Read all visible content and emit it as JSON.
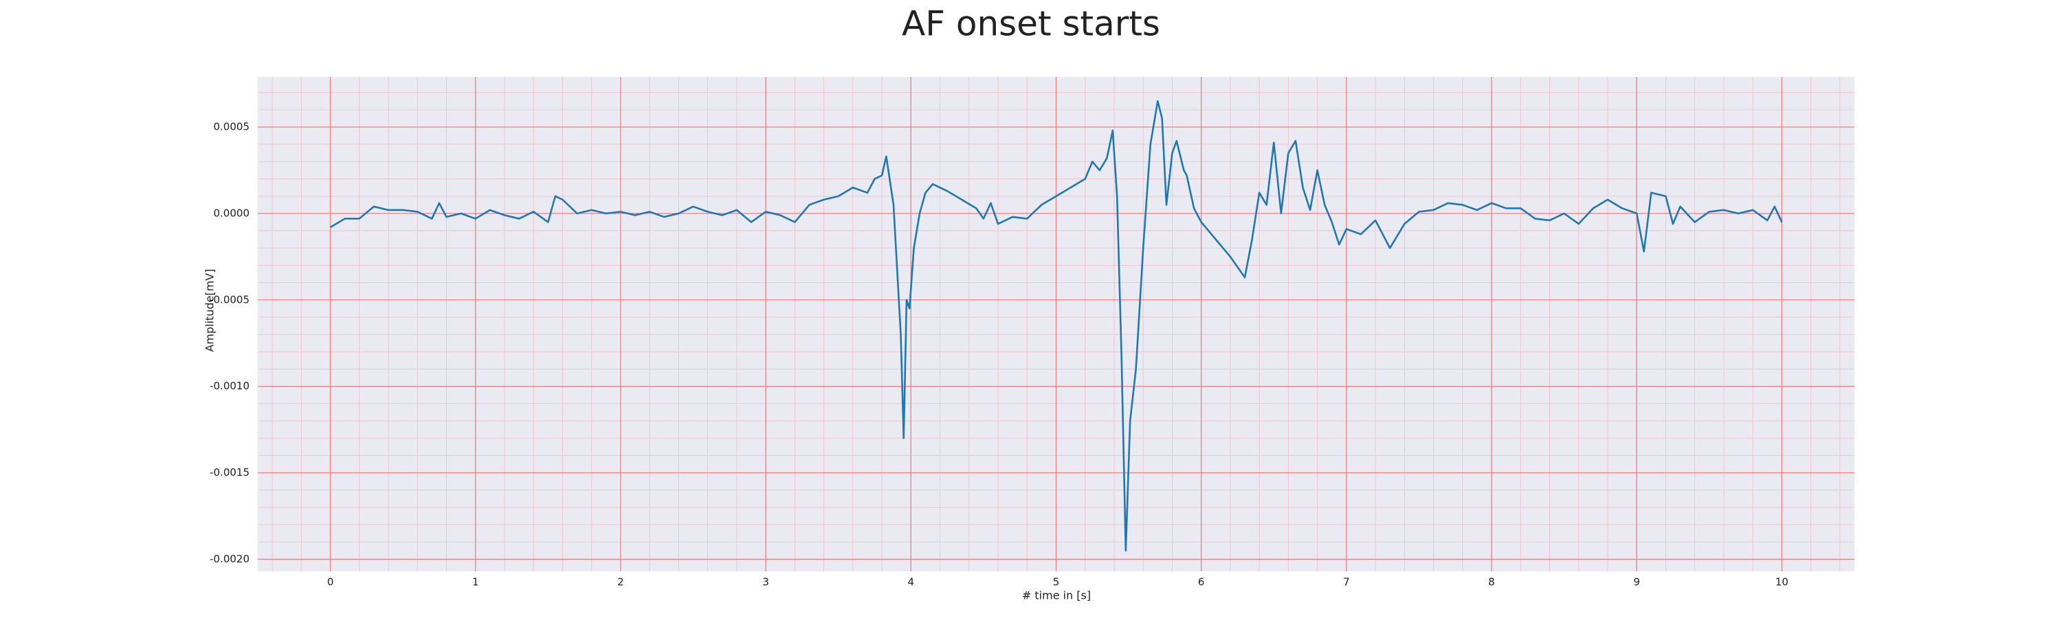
{
  "chart_data": {
    "type": "line",
    "title": "AF onset starts",
    "xlabel": "# time in [s]",
    "ylabel": "Amplitude[mV]",
    "x": [
      0,
      0.1,
      0.2,
      0.3,
      0.4,
      0.5,
      0.6,
      0.7,
      0.75,
      0.8,
      0.9,
      1.0,
      1.1,
      1.2,
      1.3,
      1.4,
      1.5,
      1.55,
      1.6,
      1.7,
      1.8,
      1.9,
      2.0,
      2.1,
      2.2,
      2.3,
      2.4,
      2.5,
      2.6,
      2.7,
      2.8,
      2.9,
      3.0,
      3.1,
      3.2,
      3.3,
      3.4,
      3.5,
      3.6,
      3.7,
      3.75,
      3.8,
      3.83,
      3.88,
      3.9,
      3.93,
      3.95,
      3.97,
      3.99,
      4.02,
      4.06,
      4.1,
      4.15,
      4.25,
      4.35,
      4.45,
      4.5,
      4.55,
      4.6,
      4.7,
      4.8,
      4.9,
      5.0,
      5.1,
      5.2,
      5.25,
      5.3,
      5.35,
      5.39,
      5.42,
      5.45,
      5.48,
      5.51,
      5.55,
      5.6,
      5.65,
      5.7,
      5.73,
      5.76,
      5.8,
      5.83,
      5.88,
      5.9,
      5.95,
      6.0,
      6.1,
      6.2,
      6.3,
      6.35,
      6.4,
      6.45,
      6.5,
      6.55,
      6.6,
      6.65,
      6.7,
      6.75,
      6.8,
      6.85,
      6.9,
      6.95,
      7.0,
      7.1,
      7.2,
      7.3,
      7.4,
      7.5,
      7.6,
      7.7,
      7.8,
      7.9,
      8.0,
      8.1,
      8.2,
      8.3,
      8.4,
      8.5,
      8.6,
      8.7,
      8.8,
      8.9,
      9.0,
      9.05,
      9.1,
      9.2,
      9.25,
      9.3,
      9.4,
      9.5,
      9.6,
      9.7,
      9.8,
      9.9,
      9.95,
      10.0
    ],
    "series": [
      {
        "color": "#1f77b4",
        "values": [
          -8e-05,
          -3e-05,
          -3e-05,
          4e-05,
          2e-05,
          2e-05,
          1e-05,
          -3e-05,
          6e-05,
          -2e-05,
          0.0,
          -3e-05,
          2e-05,
          -1e-05,
          -3e-05,
          1e-05,
          -5e-05,
          0.0001,
          8e-05,
          0.0,
          2e-05,
          0.0,
          1e-05,
          -1e-05,
          1e-05,
          -2e-05,
          0.0,
          4e-05,
          1e-05,
          -1e-05,
          2e-05,
          -5e-05,
          1e-05,
          -1e-05,
          -5e-05,
          5e-05,
          8e-05,
          0.0001,
          0.00015,
          0.00012,
          0.0002,
          0.00022,
          0.00033,
          5e-05,
          -0.00025,
          -0.0007,
          -0.0013,
          -0.0005,
          -0.00055,
          -0.0002,
          0.0,
          0.00012,
          0.00017,
          0.00013,
          8e-05,
          3e-05,
          -3e-05,
          6e-05,
          -6e-05,
          -2e-05,
          -3e-05,
          5e-05,
          0.0001,
          0.00015,
          0.0002,
          0.0003,
          0.00025,
          0.00032,
          0.00048,
          0.0001,
          -0.0008,
          -0.00195,
          -0.0012,
          -0.0009,
          -0.0002,
          0.0004,
          0.00065,
          0.00055,
          5e-05,
          0.00035,
          0.00042,
          0.00025,
          0.00022,
          3e-05,
          -5e-05,
          -0.00015,
          -0.00025,
          -0.00037,
          -0.00015,
          0.00012,
          5e-05,
          0.00041,
          0.0,
          0.00035,
          0.00042,
          0.00015,
          2e-05,
          0.00025,
          5e-05,
          -5e-05,
          -0.00018,
          -9e-05,
          -0.00012,
          -4e-05,
          -0.0002,
          -6e-05,
          1e-05,
          2e-05,
          6e-05,
          5e-05,
          2e-05,
          6e-05,
          3e-05,
          3e-05,
          -3e-05,
          -4e-05,
          0.0,
          -6e-05,
          3e-05,
          8e-05,
          3e-05,
          0.0,
          -0.00022,
          0.00012,
          0.0001,
          -6e-05,
          4e-05,
          -5e-05,
          1e-05,
          2e-05,
          0.0,
          2e-05,
          -4e-05,
          4e-05,
          -5e-05
        ]
      }
    ],
    "xlim": [
      -0.5,
      10.5
    ],
    "xticks": [
      0,
      1,
      2,
      3,
      4,
      5,
      6,
      7,
      8,
      9,
      10
    ],
    "ylim": [
      -0.00207,
      0.00079
    ],
    "yticks": [
      {
        "value": -0.002,
        "label": "-0.0020"
      },
      {
        "value": -0.0015,
        "label": "-0.0015"
      },
      {
        "value": -0.001,
        "label": "-0.0010"
      },
      {
        "value": -0.0005,
        "label": "-0.0005"
      },
      {
        "value": 0,
        "label": "0.0000"
      },
      {
        "value": 0.0005,
        "label": "0.0005"
      }
    ],
    "grid": true,
    "minor_grid": true,
    "grid_color": "#f08080",
    "minor_grid_color": "#f4c4cc",
    "background": "#eaeaf2"
  }
}
